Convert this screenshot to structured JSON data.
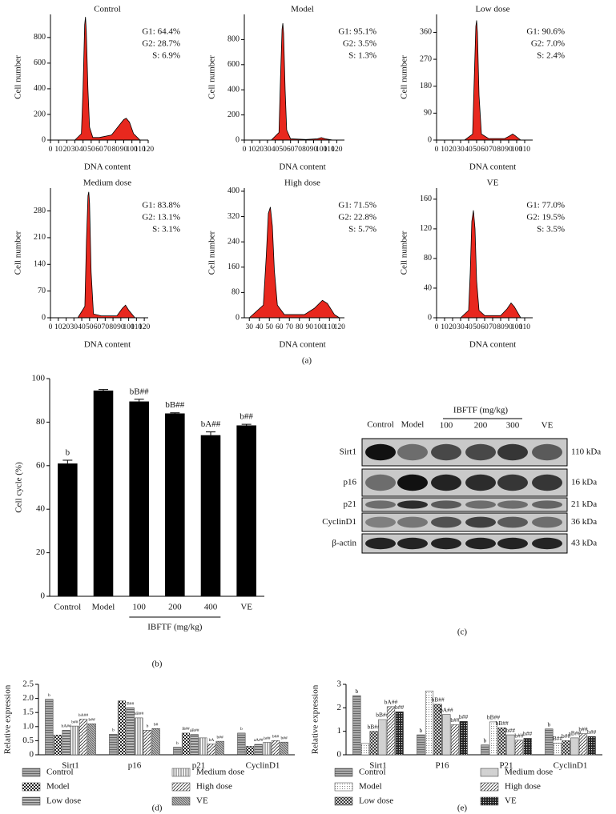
{
  "figure": {
    "panel_labels": [
      "(a)",
      "(b)",
      "(c)",
      "(d)",
      "(e)"
    ]
  },
  "blot": {
    "lanes": [
      "Control",
      "Model",
      "100",
      "200",
      "300",
      "VE"
    ],
    "group_label": "IBFTF (mg/kg)",
    "rows": [
      {
        "name": "Sirt1",
        "size": "110 kDa"
      },
      {
        "name": "p16",
        "size": "16 kDa"
      },
      {
        "name": "p21",
        "size": "21 kDa"
      },
      {
        "name": "CyclinD1",
        "size": "36 kDa"
      },
      {
        "name": "β-actin",
        "size": "43 kDa"
      }
    ]
  },
  "chart_data": [
    {
      "type": "area",
      "title": "Control",
      "annotations": [
        "G1: 64.4%",
        "G2: 28.7%",
        "S: 6.9%"
      ],
      "xlabel": "DNA content",
      "ylabel": "Cell number",
      "x": [
        30,
        38,
        40,
        42,
        43,
        44,
        46,
        48,
        52,
        60,
        75,
        85,
        90,
        93,
        97,
        102,
        110
      ],
      "series": [
        {
          "color": "#e8281e",
          "values": [
            0,
            50,
            400,
            900,
            960,
            850,
            400,
            100,
            20,
            20,
            40,
            120,
            160,
            170,
            140,
            50,
            0
          ]
        }
      ],
      "xlim": [
        0,
        120
      ],
      "ylim": [
        0,
        980
      ],
      "xticks": [
        0,
        10,
        20,
        30,
        40,
        50,
        60,
        70,
        80,
        90,
        100,
        110,
        120
      ],
      "yticks": [
        0,
        200,
        400,
        600,
        800
      ]
    },
    {
      "type": "area",
      "title": "Model",
      "annotations": [
        "G1: 95.1%",
        "G2: 3.5%",
        "S: 1.3%"
      ],
      "xlabel": "DNA content",
      "ylabel": "Cell number",
      "x": [
        35,
        45,
        47,
        49,
        50,
        51,
        53,
        55,
        60,
        80,
        95,
        100,
        105,
        115
      ],
      "series": [
        {
          "color": "#e8281e",
          "values": [
            0,
            60,
            500,
            880,
            930,
            850,
            400,
            80,
            10,
            5,
            10,
            20,
            10,
            0
          ]
        }
      ],
      "xlim": [
        0,
        130
      ],
      "ylim": [
        0,
        1000
      ],
      "xticks": [
        0,
        10,
        20,
        30,
        40,
        50,
        60,
        70,
        80,
        90,
        100,
        110,
        120
      ],
      "yticks": [
        0,
        200,
        400,
        600,
        800
      ]
    },
    {
      "type": "area",
      "title": "Low dose",
      "annotations": [
        "G1: 90.6%",
        "G2: 7.0%",
        "S: 2.4%"
      ],
      "xlabel": "DNA content",
      "ylabel": "Cell number",
      "x": [
        35,
        45,
        47,
        49,
        50,
        51,
        53,
        56,
        65,
        85,
        92,
        95,
        98,
        105
      ],
      "series": [
        {
          "color": "#e8281e",
          "values": [
            0,
            20,
            200,
            380,
            400,
            360,
            150,
            20,
            5,
            5,
            15,
            20,
            15,
            0
          ]
        }
      ],
      "xlim": [
        0,
        120
      ],
      "ylim": [
        0,
        420
      ],
      "xticks": [
        0,
        10,
        20,
        30,
        40,
        50,
        60,
        70,
        80,
        90,
        100,
        110
      ],
      "yticks": [
        0,
        90,
        180,
        270,
        360
      ]
    },
    {
      "type": "area",
      "title": "Medium dose",
      "annotations": [
        "G1: 83.8%",
        "G2: 13.1%",
        "S: 3.1%"
      ],
      "xlabel": "DNA content",
      "ylabel": "Cell number",
      "x": [
        35,
        44,
        46,
        48,
        49,
        50,
        52,
        55,
        65,
        85,
        92,
        96,
        100,
        108
      ],
      "series": [
        {
          "color": "#e8281e",
          "values": [
            0,
            30,
            200,
            320,
            330,
            300,
            120,
            10,
            5,
            5,
            25,
            33,
            20,
            0
          ]
        }
      ],
      "xlim": [
        0,
        125
      ],
      "ylim": [
        0,
        340
      ],
      "xticks": [
        0,
        10,
        20,
        30,
        40,
        50,
        60,
        70,
        80,
        90,
        100,
        110,
        120
      ],
      "yticks": [
        0,
        70,
        140,
        210,
        280
      ]
    },
    {
      "type": "area",
      "title": "High dose",
      "annotations": [
        "G1: 71.5%",
        "G2: 22.8%",
        "S: 5.7%"
      ],
      "xlabel": "DNA content",
      "ylabel": "Cell number",
      "x": [
        30,
        44,
        47,
        49,
        51,
        53,
        55,
        58,
        65,
        85,
        95,
        103,
        108,
        115,
        120
      ],
      "series": [
        {
          "color": "#e8281e",
          "values": [
            0,
            40,
            200,
            330,
            350,
            290,
            150,
            40,
            10,
            10,
            30,
            55,
            45,
            10,
            0
          ]
        }
      ],
      "xlim": [
        25,
        125
      ],
      "ylim": [
        0,
        410
      ],
      "xticks": [
        30,
        40,
        50,
        60,
        70,
        80,
        90,
        100,
        110,
        120
      ],
      "yticks": [
        0,
        80,
        160,
        240,
        320,
        400
      ]
    },
    {
      "type": "area",
      "title": "VE",
      "annotations": [
        "G1: 77.0%",
        "G2: 19.5%",
        "S: 3.5%"
      ],
      "xlabel": "DNA content",
      "ylabel": "Cell number",
      "x": [
        30,
        40,
        42,
        44,
        46,
        48,
        50,
        53,
        60,
        80,
        88,
        93,
        97,
        105
      ],
      "series": [
        {
          "color": "#e8281e",
          "values": [
            0,
            10,
            60,
            130,
            145,
            120,
            50,
            10,
            3,
            3,
            12,
            20,
            15,
            0
          ]
        }
      ],
      "xlim": [
        0,
        120
      ],
      "ylim": [
        0,
        175
      ],
      "xticks": [
        0,
        10,
        20,
        30,
        40,
        50,
        60,
        70,
        80,
        90,
        100,
        110
      ],
      "yticks": [
        0,
        40,
        80,
        120,
        160
      ]
    },
    {
      "type": "bar",
      "ylabel": "Cell cycle (%)",
      "group_label": "IBFTF (mg/kg)",
      "color": "#000000",
      "categories": [
        "Control",
        "Model",
        "100",
        "200",
        "400",
        "VE"
      ],
      "values": [
        61,
        94.5,
        89.5,
        84,
        74,
        78.5
      ],
      "errors": [
        1.5,
        0.5,
        1,
        0.3,
        1.5,
        0.5
      ],
      "value_labels": [
        "b",
        null,
        "bB##",
        "bB##",
        "bA##",
        "b##"
      ],
      "ylim": [
        0,
        100
      ],
      "yticks": [
        0,
        20,
        40,
        60,
        80,
        100
      ]
    },
    {
      "type": "bar",
      "ylabel": "Relative expression",
      "categories": [
        "Sirt1",
        "p16",
        "p21",
        "CyclinD1"
      ],
      "series": [
        {
          "name": "Control",
          "pattern": "p-hline",
          "values": [
            1.97,
            0.73,
            0.27,
            0.77
          ],
          "value_labels": [
            "b",
            "b",
            "b",
            "b"
          ]
        },
        {
          "name": "Model",
          "pattern": "p-checker",
          "values": [
            0.7,
            1.91,
            0.77,
            0.3
          ],
          "value_labels": [
            null,
            null,
            "B##",
            null
          ]
        },
        {
          "name": "Low dose",
          "pattern": "p-hline-dense",
          "values": [
            0.87,
            1.67,
            0.72,
            0.37
          ],
          "value_labels": [
            "bA##",
            "B##",
            "aB##",
            "aA##"
          ]
        },
        {
          "name": "Medium dose",
          "pattern": "p-vline",
          "values": [
            1.02,
            1.31,
            0.6,
            0.44
          ],
          "value_labels": [
            "b##",
            "bB##",
            null,
            "b##"
          ]
        },
        {
          "name": "High dose",
          "pattern": "p-diag",
          "values": [
            1.26,
            0.87,
            0.38,
            0.5
          ],
          "value_labels": [
            "bA##",
            "b",
            "bA",
            "b##"
          ]
        },
        {
          "name": "VE",
          "pattern": "p-diag-dense",
          "values": [
            1.1,
            0.93,
            0.48,
            0.45
          ],
          "value_labels": [
            "b##",
            "b#",
            "b##",
            "b##"
          ]
        }
      ],
      "ylim": [
        0,
        2.5
      ],
      "yticks": [
        0,
        0.5,
        {
          "value": 1.0,
          "label": "1.0"
        },
        1.5,
        {
          "value": 2.0,
          "label": "2.0"
        },
        2.5
      ]
    },
    {
      "type": "bar",
      "ylabel": "Relative expression",
      "categories": [
        "Sirt1",
        "P16",
        "P21",
        "CyclinD1"
      ],
      "series": [
        {
          "name": "Control",
          "pattern": "p-hline",
          "values": [
            2.52,
            0.85,
            0.42,
            1.1
          ],
          "value_labels": [
            "b",
            "b",
            "b",
            "b"
          ]
        },
        {
          "name": "Model",
          "pattern": "p-dots",
          "values": [
            0.48,
            2.72,
            1.4,
            0.5
          ],
          "value_labels": [
            null,
            null,
            "bB##",
            "B##"
          ]
        },
        {
          "name": "Low dose",
          "pattern": "p-cross",
          "values": [
            1.0,
            2.15,
            1.15,
            0.6
          ],
          "value_labels": [
            "bB##",
            "bB##",
            "bB##",
            "b##"
          ]
        },
        {
          "name": "Medium dose",
          "pattern": "p-dots-dense",
          "values": [
            1.5,
            1.72,
            0.85,
            0.72
          ],
          "value_labels": [
            "bB##",
            "bA##",
            "b##",
            "aB##"
          ]
        },
        {
          "name": "High dose",
          "pattern": "p-diag",
          "values": [
            2.05,
            1.28,
            0.62,
            0.9
          ],
          "value_labels": [
            "bA##",
            "b##",
            "b##",
            "b##"
          ]
        },
        {
          "name": "VE",
          "pattern": "p-dark-checker",
          "values": [
            1.83,
            1.42,
            0.7,
            0.78
          ],
          "value_labels": [
            "b##",
            "b##",
            "b##",
            "b##"
          ]
        }
      ],
      "ylim": [
        0,
        3
      ],
      "yticks": [
        0,
        1,
        2,
        3
      ]
    }
  ]
}
